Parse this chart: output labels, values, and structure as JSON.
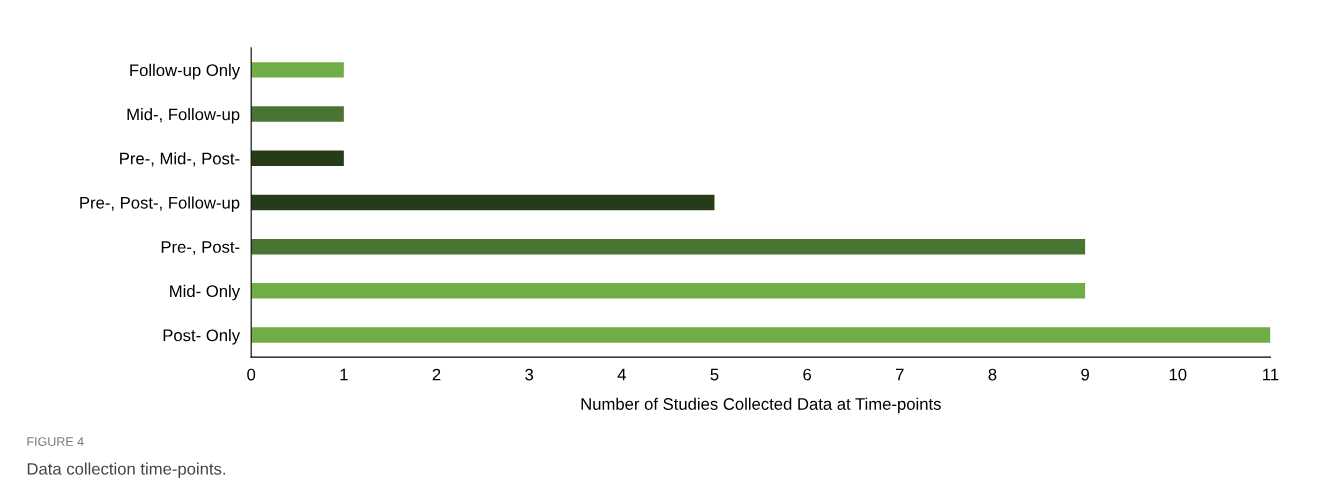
{
  "chart_data": {
    "type": "bar",
    "orientation": "horizontal",
    "xlabel": "Number of Studies Collected Data at Time-points",
    "categories": [
      "Follow-up Only",
      "Mid-, Follow-up",
      "Pre-, Mid-, Post-",
      "Pre-, Post-, Follow-up",
      "Pre-, Post-",
      "Mid- Only",
      "Post- Only"
    ],
    "values": [
      1,
      1,
      1,
      5,
      9,
      9,
      11
    ],
    "colors": [
      "#70ad47",
      "#4a7431",
      "#263c18",
      "#263c18",
      "#4a7431",
      "#70ad47",
      "#70ad47"
    ],
    "xlim": [
      0,
      11
    ],
    "xticks": [
      0,
      1,
      2,
      3,
      4,
      5,
      6,
      7,
      8,
      9,
      10,
      11
    ],
    "grid": false,
    "legend": false,
    "annotations": [
      "FIGURE 4",
      "Data collection time-points."
    ]
  }
}
